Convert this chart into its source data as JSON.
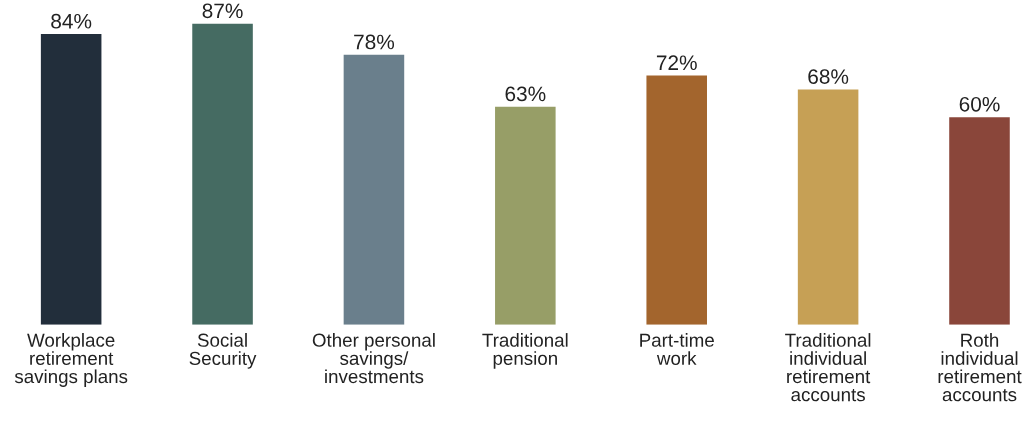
{
  "chart_data": {
    "type": "bar",
    "categories": [
      "Workplace\nretirement\nsavings plans",
      "Social\nSecurity",
      "Other personal\nsavings/\ninvestments",
      "Traditional\npension",
      "Part-time\nwork",
      "Traditional\nindividual\nretirement\naccounts",
      "Roth\nindividual\nretirement\naccounts"
    ],
    "values": [
      84,
      87,
      78,
      63,
      72,
      68,
      60
    ],
    "colors": [
      "#222e3b",
      "#456b62",
      "#6a7f8c",
      "#979e67",
      "#a3652d",
      "#c6a055",
      "#8a463a"
    ],
    "value_labels": [
      "84%",
      "87%",
      "78%",
      "63%",
      "72%",
      "68%",
      "60%"
    ],
    "grid": false
  }
}
